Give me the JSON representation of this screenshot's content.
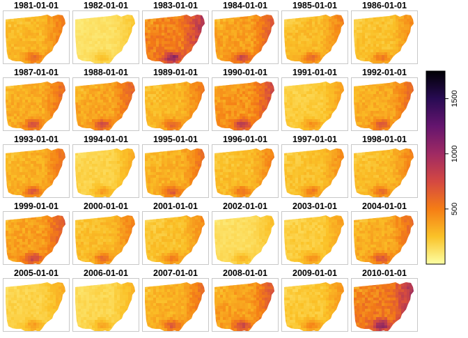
{
  "chart_data": {
    "type": "heatmap",
    "title": "",
    "panel_titles": [
      "1981-01-01",
      "1982-01-01",
      "1983-01-01",
      "1984-01-01",
      "1985-01-01",
      "1986-01-01",
      "1987-01-01",
      "1988-01-01",
      "1989-01-01",
      "1990-01-01",
      "1991-01-01",
      "1992-01-01",
      "1993-01-01",
      "1994-01-01",
      "1995-01-01",
      "1996-01-01",
      "1997-01-01",
      "1998-01-01",
      "1999-01-01",
      "2000-01-01",
      "2001-01-01",
      "2002-01-01",
      "2003-01-01",
      "2004-01-01",
      "2005-01-01",
      "2006-01-01",
      "2007-01-01",
      "2008-01-01",
      "2009-01-01",
      "2010-01-01"
    ],
    "panel_mean_level": [
      350,
      150,
      600,
      450,
      330,
      300,
      400,
      420,
      350,
      500,
      250,
      400,
      380,
      220,
      380,
      320,
      300,
      330,
      450,
      330,
      300,
      170,
      250,
      400,
      220,
      200,
      380,
      450,
      270,
      620
    ],
    "layout": {
      "rows": 5,
      "columns": 6
    },
    "colorbar": {
      "palette": "inferno (reversed)",
      "range": [
        0,
        1750
      ],
      "ticks": [
        500,
        1000,
        1500
      ],
      "tick_labels": [
        "500",
        "1000",
        "1500"
      ],
      "colors": [
        "#fcffa4",
        "#fac228",
        "#f57d15",
        "#d44842",
        "#9f2a63",
        "#65156e",
        "#280b53",
        "#000004"
      ],
      "placement": "right"
    },
    "grid": false,
    "legend_placement": "right"
  }
}
